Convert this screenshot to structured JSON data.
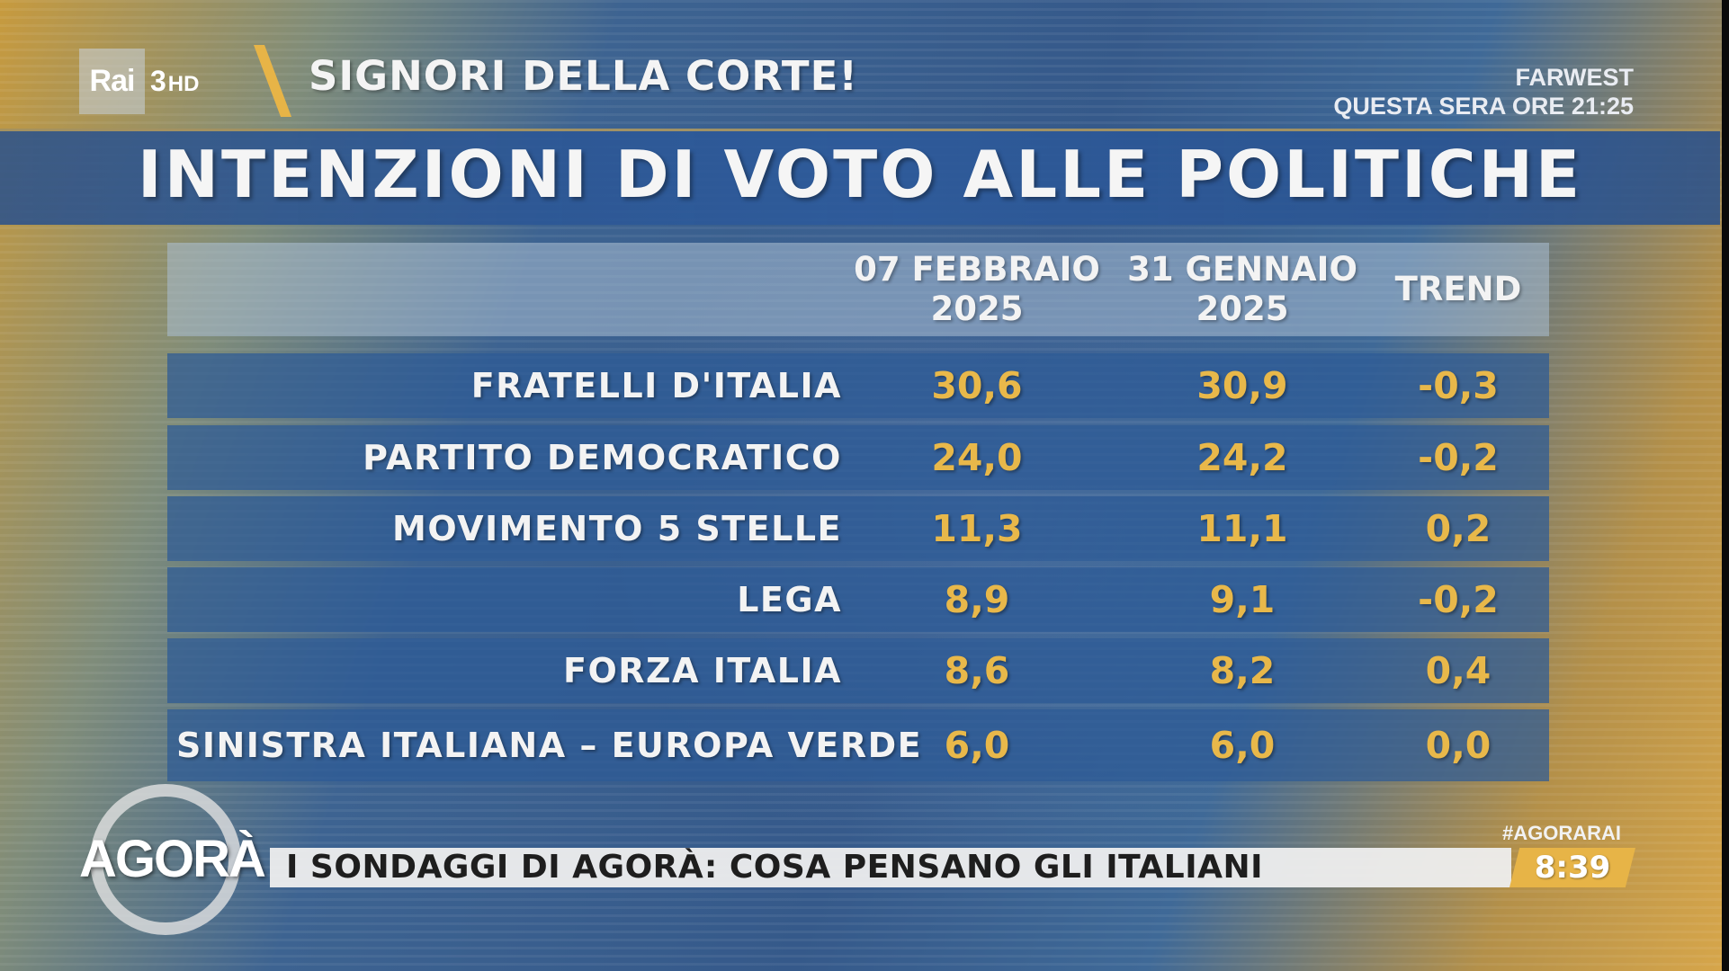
{
  "channel": {
    "logo_text": "Rai",
    "channel_number": "3",
    "hd": "HD"
  },
  "program_title": "SIGNORI DELLA CORTE!",
  "promo": {
    "line1": "FARWEST",
    "line2": "QUESTA SERA ORE 21:25"
  },
  "chart_data": {
    "type": "table",
    "title": "INTENZIONI DI VOTO ALLE POLITICHE",
    "columns": [
      {
        "line1": "07 FEBBRAIO",
        "line2": "2025"
      },
      {
        "line1": "31 GENNAIO",
        "line2": "2025"
      },
      {
        "line1": "TREND",
        "line2": ""
      }
    ],
    "rows": [
      {
        "party": "FRATELLI D'ITALIA",
        "feb07": "30,6",
        "jan31": "30,9",
        "trend": "-0,3"
      },
      {
        "party": "PARTITO DEMOCRATICO",
        "feb07": "24,0",
        "jan31": "24,2",
        "trend": "-0,2"
      },
      {
        "party": "MOVIMENTO 5 STELLE",
        "feb07": "11,3",
        "jan31": "11,1",
        "trend": "0,2"
      },
      {
        "party": "LEGA",
        "feb07": "8,9",
        "jan31": "9,1",
        "trend": "-0,2"
      },
      {
        "party": "FORZA ITALIA",
        "feb07": "8,6",
        "jan31": "8,2",
        "trend": "0,4"
      },
      {
        "party": "SINISTRA ITALIANA – EUROPA VERDE",
        "feb07": "6,0",
        "jan31": "6,0",
        "trend": "0,0"
      }
    ]
  },
  "ticker": {
    "show_logo": "AGORÀ",
    "text": "I SONDAGGI DI AGORÀ: COSA PENSANO GLI ITALIANI",
    "hashtag": "#AGORARAI",
    "time": "8:39"
  },
  "colors": {
    "value_gold": "#e8b84a",
    "row_blue": "#2d5a96",
    "accent_gold": "#e7b447"
  }
}
